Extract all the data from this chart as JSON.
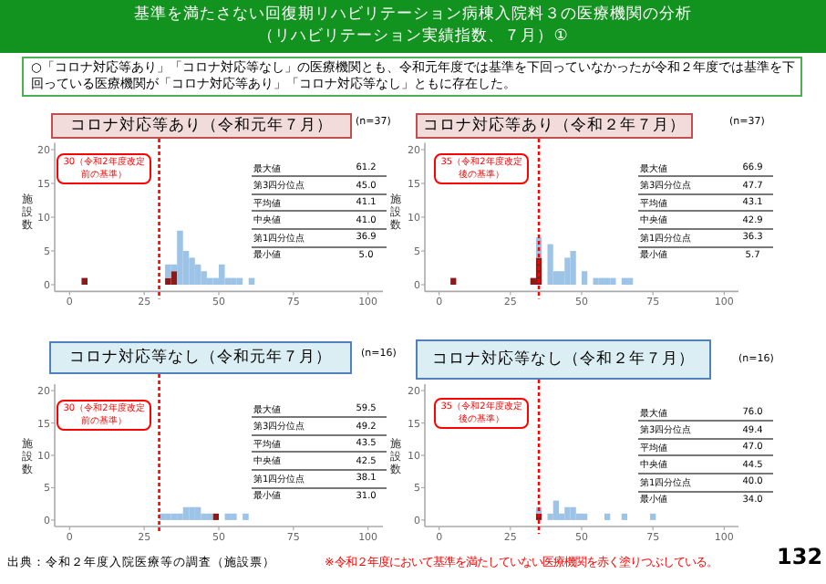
{
  "chart_data": [
    {
      "type": "other",
      "title": "基準を満たさない回復期リハビリテーション病棟入院料３の医療機関の分析",
      "subtitle": "（リハビリテーション実績指数、７月）①",
      "annotations": [
        "○「コロナ対応等あり」「コロナ対応等なし」の医療機関とも、令和元年度では基準を下回っていなかったが令和２年度では基準を下回っている医療機関が「コロナ対応等あり」「コロナ対応等なし」ともに存在した。",
        "出典：令和２年度入院医療等の調査（施設票）",
        "※令和２年度において基準を満たしていない医療機関を赤く塗りつぶしている。",
        "132"
      ]
    },
    {
      "type": "bar",
      "title": "コロナ対応等あり（令和元年７月）",
      "ylabel": "施設数",
      "annotations": [
        "(n=37)",
        "最大値",
        "61.2",
        "第3四分位点",
        "45.0",
        "平均値",
        "41.1",
        "中央値",
        "41.0",
        "第1四分位点",
        "36.9",
        "最小値",
        "5.0"
      ],
      "stacked": true,
      "x": [
        5,
        33,
        35,
        37,
        39,
        41,
        43,
        45,
        47,
        49,
        51,
        53,
        55,
        57,
        61
      ],
      "series": [
        {
          "color": "#8b1a1a",
          "values": [
            1,
            1,
            2,
            0,
            0,
            0,
            0,
            0,
            0,
            0,
            0,
            0,
            0,
            0,
            0
          ]
        },
        {
          "color": "#9dc3e6",
          "values": [
            0,
            2,
            1,
            8,
            5,
            4,
            3,
            2,
            1,
            1,
            3,
            1,
            1,
            1,
            1
          ]
        }
      ],
      "xlim": [
        -5,
        105
      ],
      "xticks": [
        0,
        25,
        50,
        75,
        100
      ],
      "ylim": [
        -1,
        21
      ],
      "yticks": [
        0,
        5,
        10,
        15,
        20
      ],
      "ref_lines": [
        {
          "axis": "x",
          "value": 30,
          "label": "30（令和2年度改定前の基準）",
          "color": "#ff0000",
          "line_style": "dashed"
        }
      ]
    },
    {
      "type": "bar",
      "title": "コロナ対応等あり（令和２年７月）",
      "ylabel": "施設数",
      "annotations": [
        "(n=37)",
        "最大値",
        "66.9",
        "第3四分位点",
        "47.7",
        "平均値",
        "43.1",
        "中央値",
        "42.9",
        "第1四分位点",
        "36.3",
        "最小値",
        "5.7"
      ],
      "stacked": true,
      "x": [
        5,
        33,
        35,
        39,
        41,
        43,
        45,
        47,
        51,
        55,
        57,
        59,
        61,
        65,
        67
      ],
      "series": [
        {
          "color": "#8b1a1a",
          "values": [
            1,
            1,
            4,
            0,
            0,
            0,
            0,
            0,
            0,
            0,
            0,
            0,
            0,
            0,
            0
          ]
        },
        {
          "color": "#9dc3e6",
          "values": [
            0,
            0,
            3,
            6,
            2,
            2,
            4,
            5,
            2,
            1,
            1,
            1,
            1,
            1,
            1
          ]
        }
      ],
      "xlim": [
        -5,
        105
      ],
      "xticks": [
        0,
        25,
        50,
        75,
        100
      ],
      "ylim": [
        -1,
        21
      ],
      "yticks": [
        0,
        5,
        10,
        15,
        20
      ],
      "ref_lines": [
        {
          "axis": "x",
          "value": 35,
          "label": "35（令和2年度改定後の基準）",
          "color": "#ff0000",
          "line_style": "dashed"
        }
      ]
    },
    {
      "type": "bar",
      "title": "コロナ対応等なし（令和元年７月）",
      "ylabel": "施設数",
      "annotations": [
        "(n=16)",
        "最大値",
        "59.5",
        "第3四分位点",
        "49.2",
        "平均値",
        "43.5",
        "中央値",
        "42.5",
        "第1四分位点",
        "38.1",
        "最小値",
        "31.0"
      ],
      "stacked": true,
      "x": [
        31,
        33,
        35,
        37,
        39,
        41,
        43,
        45,
        47,
        49,
        53,
        55,
        59
      ],
      "series": [
        {
          "color": "#8b1a1a",
          "values": [
            0,
            0,
            0,
            0,
            0,
            0,
            0,
            0,
            0,
            1,
            0,
            0,
            0
          ]
        },
        {
          "color": "#9dc3e6",
          "values": [
            1,
            1,
            1,
            1,
            2,
            2,
            2,
            1,
            1,
            0,
            1,
            1,
            1
          ]
        }
      ],
      "xlim": [
        -5,
        105
      ],
      "xticks": [
        0,
        25,
        50,
        75,
        100
      ],
      "ylim": [
        -1,
        21
      ],
      "yticks": [
        0,
        5,
        10,
        15,
        20
      ],
      "ref_lines": [
        {
          "axis": "x",
          "value": 30,
          "label": "30（令和2年度改定前の基準）",
          "color": "#ff0000",
          "line_style": "dashed"
        }
      ]
    },
    {
      "type": "bar",
      "title": "コロナ対応等なし（令和２年７月）",
      "ylabel": "施設数",
      "annotations": [
        "(n=16)",
        "最大値",
        "76.0",
        "第3四分位点",
        "49.4",
        "平均値",
        "47.0",
        "中央値",
        "44.5",
        "第1四分位点",
        "40.0",
        "最小値",
        "34.0"
      ],
      "stacked": true,
      "x": [
        35,
        39,
        41,
        43,
        45,
        47,
        49,
        51,
        59,
        65,
        75
      ],
      "series": [
        {
          "color": "#8b1a1a",
          "values": [
            1,
            0,
            0,
            0,
            0,
            0,
            0,
            0,
            0,
            0,
            0
          ]
        },
        {
          "color": "#9dc3e6",
          "values": [
            1,
            1,
            3,
            1,
            2,
            2,
            1,
            1,
            1,
            1,
            1
          ]
        }
      ],
      "xlim": [
        -5,
        105
      ],
      "xticks": [
        0,
        25,
        50,
        75,
        100
      ],
      "ylim": [
        -1,
        21
      ],
      "yticks": [
        0,
        5,
        10,
        15,
        20
      ],
      "ref_lines": [
        {
          "axis": "x",
          "value": 35,
          "label": "35（令和2年度改定後の基準）",
          "color": "#ff0000",
          "line_style": "dashed"
        }
      ]
    }
  ]
}
